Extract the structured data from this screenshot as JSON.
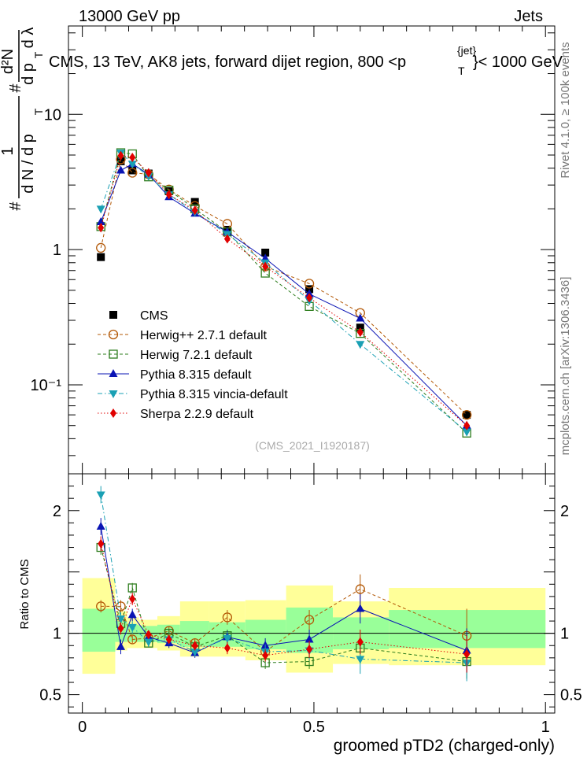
{
  "header": {
    "left": "13000 GeV pp",
    "right": "Jets",
    "title_main": "CMS, 13 TeV, AK8 jets, forward dijet region, 800 <p",
    "title_sup": "{jet}",
    "title_sub": "T",
    "title_end": "}< 1000 GeV"
  },
  "side": {
    "rivet": "Rivet 4.1.0, ≥ 100k events",
    "mcplots": "mcplots.cern.ch [arXiv:1306.3436]"
  },
  "watermark": "(CMS_2021_I1920187)",
  "ylabel_top": {
    "hash1": "#",
    "one": "1",
    "dN": "d N / d p",
    "T1": "T",
    "hash2": "#",
    "d2N": "d²N",
    "dp": "d p",
    "T2": "T",
    "dl": "d λ"
  },
  "chart_data": {
    "type": "scatter",
    "x": [
      0.04,
      0.083,
      0.108,
      0.143,
      0.187,
      0.243,
      0.313,
      0.395,
      0.49,
      0.6,
      0.83
    ],
    "xlabel": "groomed pTD2 (charged-only)",
    "xlim": [
      -0.03,
      1.02
    ],
    "xticks": [
      0,
      0.5,
      1
    ],
    "xtick_labels": [
      "0",
      "0.5",
      "1"
    ],
    "main": {
      "yscale": "log",
      "ylim": [
        0.022,
        45
      ],
      "yticks": [
        10,
        1,
        0.1
      ],
      "ytick_labels": [
        "10",
        "1",
        "10⁻¹"
      ]
    },
    "ratio": {
      "ylabel": "Ratio to CMS",
      "ylim": [
        0.35,
        2.3
      ],
      "yticks": [
        0.5,
        1,
        2
      ],
      "ytick_labels": [
        "0.5",
        "1",
        "2"
      ],
      "bands": [
        {
          "x0": 0.0,
          "x1": 0.071,
          "inner": [
            0.85,
            1.2
          ],
          "outer": [
            0.67,
            1.45
          ]
        },
        {
          "x0": 0.071,
          "x1": 0.097,
          "inner": [
            0.93,
            1.1
          ],
          "outer": [
            0.86,
            1.18
          ]
        },
        {
          "x0": 0.097,
          "x1": 0.122,
          "inner": [
            0.93,
            1.07
          ],
          "outer": [
            0.88,
            1.13
          ]
        },
        {
          "x0": 0.122,
          "x1": 0.162,
          "inner": [
            0.93,
            1.06
          ],
          "outer": [
            0.88,
            1.11
          ]
        },
        {
          "x0": 0.162,
          "x1": 0.211,
          "inner": [
            0.92,
            1.07
          ],
          "outer": [
            0.86,
            1.14
          ]
        },
        {
          "x0": 0.211,
          "x1": 0.274,
          "inner": [
            0.89,
            1.1
          ],
          "outer": [
            0.81,
            1.26
          ]
        },
        {
          "x0": 0.274,
          "x1": 0.352,
          "inner": [
            0.89,
            1.09
          ],
          "outer": [
            0.81,
            1.26
          ]
        },
        {
          "x0": 0.352,
          "x1": 0.44,
          "inner": [
            0.87,
            1.11
          ],
          "outer": [
            0.78,
            1.27
          ]
        },
        {
          "x0": 0.44,
          "x1": 0.541,
          "inner": [
            0.84,
            1.21
          ],
          "outer": [
            0.68,
            1.39
          ]
        },
        {
          "x0": 0.541,
          "x1": 0.662,
          "inner": [
            0.87,
            1.13
          ],
          "outer": [
            0.75,
            1.26
          ]
        },
        {
          "x0": 0.662,
          "x1": 1.0,
          "inner": [
            0.88,
            1.19
          ],
          "outer": [
            0.74,
            1.37
          ]
        }
      ]
    },
    "series": [
      {
        "name": "CMS",
        "color": "#000000",
        "marker": "square-filled",
        "line": "none",
        "values": [
          0.88,
          4.5,
          3.85,
          3.65,
          2.7,
          2.25,
          1.4,
          0.95,
          0.51,
          0.265,
          0.06
        ],
        "ratio": [
          1,
          1,
          1,
          1,
          1,
          1,
          1,
          1,
          1,
          1,
          1
        ]
      },
      {
        "name": "Herwig++ 2.7.1 default",
        "color": "#b35806",
        "marker": "circle-open",
        "line": "dashed",
        "values": [
          1.03,
          4.65,
          3.7,
          3.6,
          2.78,
          2.1,
          1.55,
          0.75,
          0.56,
          0.34,
          0.06
        ],
        "ratio": [
          1.22,
          1.22,
          0.95,
          0.96,
          1.02,
          0.92,
          1.13,
          0.85,
          1.11,
          1.36,
          0.98
        ],
        "ratio_err": [
          0.05,
          0.05,
          0.03,
          0.03,
          0.03,
          0.04,
          0.06,
          0.06,
          0.08,
          0.12,
          0.22
        ]
      },
      {
        "name": "Herwig 7.2.1 default",
        "color": "#2e7d1e",
        "marker": "square-open",
        "line": "dashed",
        "values": [
          1.48,
          5.2,
          5.1,
          3.45,
          2.75,
          2.0,
          1.35,
          0.67,
          0.38,
          0.24,
          0.044
        ],
        "ratio": [
          1.7,
          1.08,
          1.37,
          0.92,
          1.0,
          0.89,
          0.98,
          0.76,
          0.77,
          0.88,
          0.77
        ],
        "ratio_err": [
          0.06,
          0.04,
          0.04,
          0.03,
          0.03,
          0.04,
          0.05,
          0.05,
          0.06,
          0.09,
          0.14
        ]
      },
      {
        "name": "Pythia 8.315 default",
        "color": "#0a14b4",
        "marker": "triangle-up-filled",
        "line": "solid",
        "values": [
          1.6,
          3.85,
          4.3,
          3.6,
          2.45,
          1.85,
          1.35,
          0.86,
          0.47,
          0.31,
          0.05
        ],
        "ratio": [
          1.87,
          0.89,
          1.15,
          0.97,
          0.92,
          0.84,
          0.97,
          0.9,
          0.95,
          1.2,
          0.86
        ],
        "ratio_err": [
          0.07,
          0.06,
          0.05,
          0.04,
          0.04,
          0.04,
          0.05,
          0.06,
          0.08,
          0.12,
          0.18
        ]
      },
      {
        "name": "Pythia 8.315 vincia-default",
        "color": "#1aa0b4",
        "marker": "triangle-down-filled",
        "line": "dashdot",
        "values": [
          2.0,
          5.2,
          4.3,
          3.5,
          2.55,
          1.9,
          1.3,
          0.8,
          0.42,
          0.2,
          0.045
        ],
        "ratio": [
          2.13,
          1.12,
          1.05,
          0.93,
          0.95,
          0.85,
          0.96,
          0.85,
          0.86,
          0.79,
          0.76
        ],
        "ratio_err": [
          0.07,
          0.05,
          0.05,
          0.04,
          0.04,
          0.04,
          0.05,
          0.06,
          0.08,
          0.12,
          0.15
        ]
      },
      {
        "name": "Sherpa 2.2.9 default",
        "color": "#e00000",
        "marker": "diamond-filled",
        "line": "dotted",
        "values": [
          1.45,
          4.95,
          4.8,
          3.7,
          2.55,
          1.95,
          1.2,
          0.75,
          0.44,
          0.245,
          0.05
        ],
        "ratio": [
          1.73,
          1.04,
          1.28,
          0.99,
          0.95,
          0.9,
          0.88,
          0.82,
          0.87,
          0.93,
          0.83
        ],
        "ratio_err": [
          0.06,
          0.05,
          0.05,
          0.03,
          0.03,
          0.04,
          0.05,
          0.05,
          0.07,
          0.1,
          0.15
        ]
      }
    ]
  }
}
